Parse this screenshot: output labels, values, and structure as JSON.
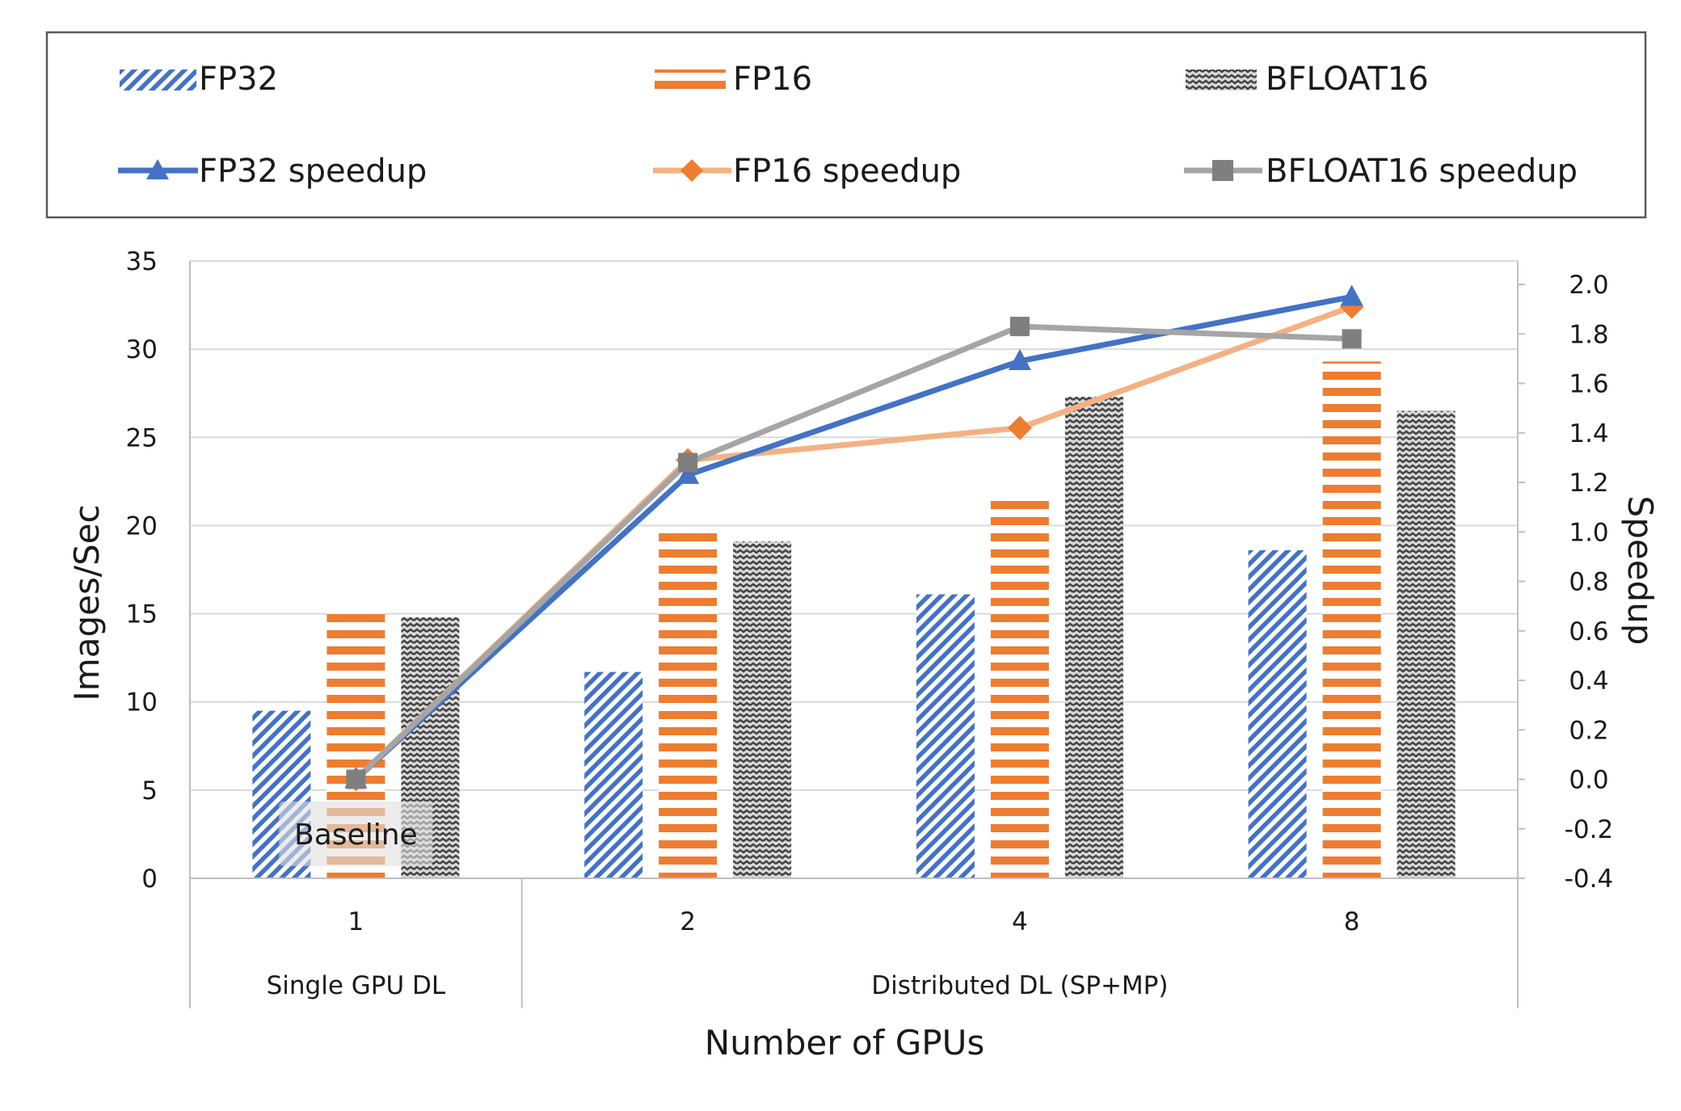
{
  "chart_data": {
    "type": "bar",
    "xlabel": "Number of GPUs",
    "ylabel": "Images/Sec",
    "y2label": "Speedup",
    "categories": [
      "1",
      "2",
      "4",
      "8"
    ],
    "category_groups": [
      {
        "label": "Single GPU DL",
        "categories": [
          "1"
        ]
      },
      {
        "label": "Distributed DL (SP+MP)",
        "categories": [
          "2",
          "4",
          "8"
        ]
      }
    ],
    "ylim": [
      0,
      35
    ],
    "yticks": [
      0,
      5,
      10,
      15,
      20,
      25,
      30,
      35
    ],
    "y2lim": [
      -0.4,
      2.0
    ],
    "y2ticks": [
      "-0.4",
      "-0.2",
      "0.0",
      "0.2",
      "0.4",
      "0.6",
      "0.8",
      "1.0",
      "1.2",
      "1.4",
      "1.6",
      "1.8",
      "2.0"
    ],
    "grid": true,
    "legend_position": "top",
    "series": [
      {
        "name": "FP32",
        "kind": "bar",
        "axis": "left",
        "color": "#4472C4",
        "pattern": "diagonal",
        "values": [
          9.5,
          11.7,
          16.1,
          18.6
        ]
      },
      {
        "name": "FP16",
        "kind": "bar",
        "axis": "left",
        "color": "#ED7D31",
        "pattern": "horizontal",
        "values": [
          15.2,
          19.8,
          21.8,
          29.3
        ]
      },
      {
        "name": "BFLOAT16",
        "kind": "bar",
        "axis": "left",
        "color": "#7F7F7F",
        "pattern": "wave",
        "values": [
          14.8,
          19.1,
          27.3,
          26.5
        ]
      },
      {
        "name": "FP32 speedup",
        "kind": "line",
        "axis": "right",
        "color": "#4472C4",
        "marker": "triangle",
        "values": [
          0.0,
          1.23,
          1.69,
          1.95
        ]
      },
      {
        "name": "FP16 speedup",
        "kind": "line",
        "axis": "right",
        "color": "#F4B183",
        "marker": "diamond",
        "marker_color": "#ED7D31",
        "values": [
          0.0,
          1.29,
          1.42,
          1.91
        ]
      },
      {
        "name": "BFLOAT16 speedup",
        "kind": "line",
        "axis": "right",
        "color": "#A5A5A5",
        "marker": "square",
        "marker_color": "#7F7F7F",
        "values": [
          0.0,
          1.28,
          1.83,
          1.78
        ]
      }
    ],
    "annotations": [
      {
        "text": "Baseline",
        "category": "1"
      }
    ]
  }
}
